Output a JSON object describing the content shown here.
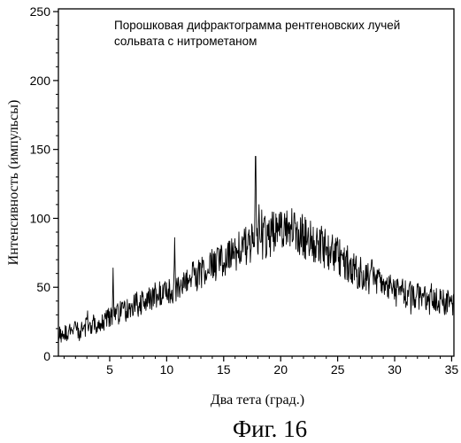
{
  "figure_label": "Фиг. 16",
  "chart_data": {
    "type": "line",
    "title_lines": [
      "Порошковая дифрактограмма рентгеновских лучей",
      "сольвата с нитрометаном"
    ],
    "xlabel": "Два тета (град.)",
    "ylabel": "Интенсивность (импульсы)",
    "xlim": [
      0.5,
      35.2
    ],
    "ylim": [
      0,
      252
    ],
    "xticks": [
      5,
      10,
      15,
      20,
      25,
      30,
      35
    ],
    "yticks": [
      0,
      50,
      100,
      150,
      200,
      250
    ],
    "grid": false,
    "legend": "none",
    "line_color": "#000000",
    "series": [
      {
        "baseline": [
          [
            0.5,
            16
          ],
          [
            2,
            19
          ],
          [
            4,
            24
          ],
          [
            6,
            32
          ],
          [
            8,
            40
          ],
          [
            10,
            47
          ],
          [
            12,
            55
          ],
          [
            14,
            65
          ],
          [
            16,
            76
          ],
          [
            18,
            85
          ],
          [
            20,
            91
          ],
          [
            21,
            91
          ],
          [
            22,
            87
          ],
          [
            24,
            78
          ],
          [
            26,
            66
          ],
          [
            28,
            55
          ],
          [
            30,
            47
          ],
          [
            32,
            43
          ],
          [
            34,
            40
          ],
          [
            35.2,
            38
          ]
        ],
        "peaks": [
          [
            5.3,
            64
          ],
          [
            10.7,
            86
          ],
          [
            17.8,
            145
          ],
          [
            18.1,
            110
          ],
          [
            21.2,
            104
          ],
          [
            25.3,
            77
          ],
          [
            28.0,
            70
          ]
        ]
      }
    ]
  }
}
